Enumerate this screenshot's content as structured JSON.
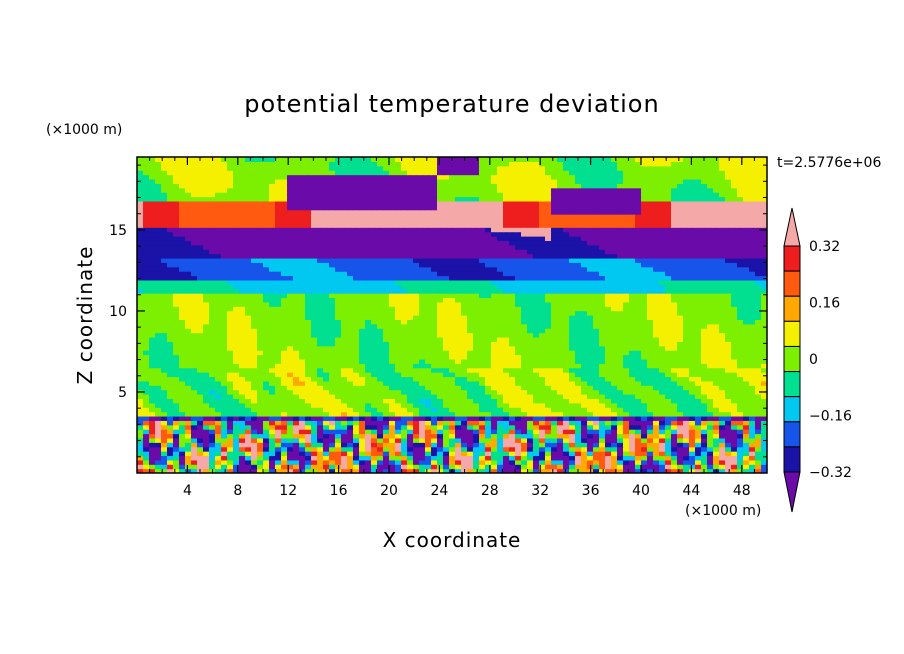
{
  "chart_data": {
    "type": "heatmap",
    "title": "potential temperature deviation",
    "xlabel": "X coordinate",
    "ylabel": "Z coordinate",
    "x_unit": "(×1000 m)",
    "y_unit": "(×1000 m)",
    "time_label": "t=2.5776e+06",
    "xlim": [
      0,
      50
    ],
    "ylim": [
      0,
      19.5
    ],
    "xticks": [
      "4",
      "8",
      "12",
      "16",
      "20",
      "24",
      "28",
      "32",
      "36",
      "40",
      "44",
      "48"
    ],
    "xtick_values": [
      4,
      8,
      12,
      16,
      20,
      24,
      28,
      32,
      36,
      40,
      44,
      48
    ],
    "yticks": [
      "5",
      "10",
      "15"
    ],
    "ytick_values": [
      5,
      10,
      15
    ],
    "colorbar": {
      "levels": [
        -0.4,
        -0.32,
        -0.24,
        -0.16,
        -0.08,
        0,
        0.08,
        0.16,
        0.24,
        0.32,
        0.4
      ],
      "tick_labels": [
        "0.32",
        "0.16",
        "0",
        "−0.16",
        "−0.32"
      ],
      "tick_values": [
        0.32,
        0.16,
        0,
        -0.16,
        -0.32
      ],
      "colors": [
        "#6a0aa8",
        "#1b13a8",
        "#1654ea",
        "#00c8f0",
        "#00e090",
        "#7cf000",
        "#f5f000",
        "#ffa800",
        "#ff5a10",
        "#ee1e1e",
        "#f5a8a8"
      ],
      "extend": "both"
    },
    "bands": [
      {
        "z": [
          0,
          3.2
        ],
        "description": "surface layer, alternating warm/cold plumes",
        "value_range": [
          -0.4,
          0.4
        ]
      },
      {
        "z": [
          3.2,
          3.6
        ],
        "value": -0.32
      },
      {
        "z": [
          3.6,
          11.2
        ],
        "value": 0.0
      },
      {
        "z": [
          11.2,
          12.0
        ],
        "value": -0.12
      },
      {
        "z": [
          12.0,
          13.5
        ],
        "value": -0.2
      },
      {
        "z": [
          13.5,
          15.5
        ],
        "value": -0.36
      },
      {
        "z": [
          15.5,
          17.0
        ],
        "value": 0.4
      },
      {
        "z": [
          17.0,
          19.5
        ],
        "value": 0.0
      }
    ]
  }
}
